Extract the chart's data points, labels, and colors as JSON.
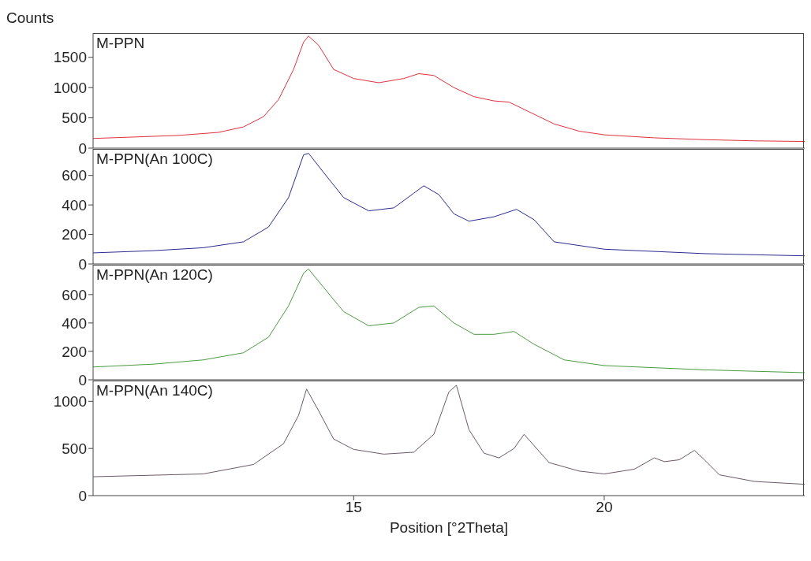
{
  "chart_data": [
    {
      "type": "line",
      "ylabel": "Counts",
      "xlim": [
        9.8,
        24
      ],
      "ylim": [
        0,
        1900
      ],
      "yticks": [
        0,
        500,
        1000,
        1500
      ],
      "tick_labels": "y",
      "legend": false,
      "grid": false,
      "marker": "none",
      "line_style": "solid",
      "series": [
        {
          "name": "M-PPN",
          "color": "#e0303c",
          "x": [
            9.8,
            10.5,
            11.5,
            12.3,
            12.8,
            13.2,
            13.5,
            13.8,
            14.0,
            14.1,
            14.3,
            14.6,
            15.0,
            15.5,
            16.0,
            16.3,
            16.6,
            17.0,
            17.4,
            17.8,
            18.1,
            18.5,
            19.0,
            19.5,
            20.0,
            21,
            22,
            23,
            24
          ],
          "values": [
            160,
            180,
            210,
            260,
            350,
            520,
            800,
            1300,
            1750,
            1850,
            1700,
            1300,
            1150,
            1080,
            1150,
            1230,
            1200,
            1000,
            850,
            780,
            760,
            600,
            400,
            280,
            220,
            170,
            140,
            120,
            110
          ]
        }
      ]
    },
    {
      "type": "line",
      "xlim": [
        9.8,
        24
      ],
      "ylim": [
        0,
        780
      ],
      "yticks": [
        0,
        200,
        400,
        600
      ],
      "tick_labels": "y",
      "legend": false,
      "grid": false,
      "marker": "none",
      "line_style": "solid",
      "series": [
        {
          "name": "M-PPN(An 100C)",
          "color": "#2a2a90",
          "x": [
            9.8,
            11,
            12,
            12.8,
            13.3,
            13.7,
            14.0,
            14.1,
            14.4,
            14.8,
            15.3,
            15.8,
            16.2,
            16.4,
            16.7,
            17.0,
            17.3,
            17.8,
            18.25,
            18.6,
            19.0,
            20,
            22,
            24
          ],
          "values": [
            75,
            90,
            110,
            150,
            250,
            450,
            740,
            750,
            620,
            450,
            360,
            380,
            480,
            530,
            470,
            340,
            290,
            320,
            370,
            300,
            150,
            100,
            70,
            55
          ]
        }
      ]
    },
    {
      "type": "line",
      "xlim": [
        9.8,
        24
      ],
      "ylim": [
        0,
        810
      ],
      "yticks": [
        0,
        200,
        400,
        600
      ],
      "tick_labels": "y",
      "legend": false,
      "grid": false,
      "marker": "none",
      "line_style": "solid",
      "series": [
        {
          "name": "M-PPN(An 120C)",
          "color": "#4a9a40",
          "x": [
            9.8,
            11,
            12,
            12.8,
            13.3,
            13.7,
            14.0,
            14.1,
            14.4,
            14.8,
            15.3,
            15.8,
            16.3,
            16.6,
            17.0,
            17.4,
            17.8,
            18.2,
            18.6,
            19.2,
            20,
            22,
            24
          ],
          "values": [
            90,
            110,
            140,
            190,
            300,
            520,
            750,
            780,
            650,
            480,
            380,
            400,
            510,
            520,
            400,
            320,
            320,
            340,
            250,
            140,
            100,
            70,
            50
          ]
        }
      ]
    },
    {
      "type": "line",
      "xlabel": "Position [°2Theta]",
      "xlim": [
        9.8,
        24
      ],
      "xticks": [
        15,
        20
      ],
      "ylim": [
        0,
        1220
      ],
      "yticks": [
        0,
        500,
        1000
      ],
      "legend": false,
      "grid": false,
      "marker": "none",
      "line_style": "solid",
      "series": [
        {
          "name": "M-PPN(An 140C)",
          "color": "#6a5a68",
          "x": [
            9.8,
            12,
            13,
            13.6,
            13.9,
            14.06,
            14.3,
            14.6,
            15,
            15.6,
            16.2,
            16.6,
            16.9,
            17.05,
            17.3,
            17.6,
            17.9,
            18.2,
            18.4,
            18.6,
            18.9,
            19.5,
            20,
            20.6,
            21.0,
            21.2,
            21.5,
            21.8,
            22.0,
            22.3,
            23,
            24
          ],
          "values": [
            200,
            230,
            330,
            550,
            850,
            1130,
            900,
            600,
            490,
            440,
            460,
            650,
            1100,
            1170,
            700,
            450,
            400,
            500,
            650,
            530,
            350,
            260,
            230,
            280,
            400,
            360,
            380,
            480,
            380,
            220,
            150,
            120
          ]
        }
      ]
    }
  ]
}
